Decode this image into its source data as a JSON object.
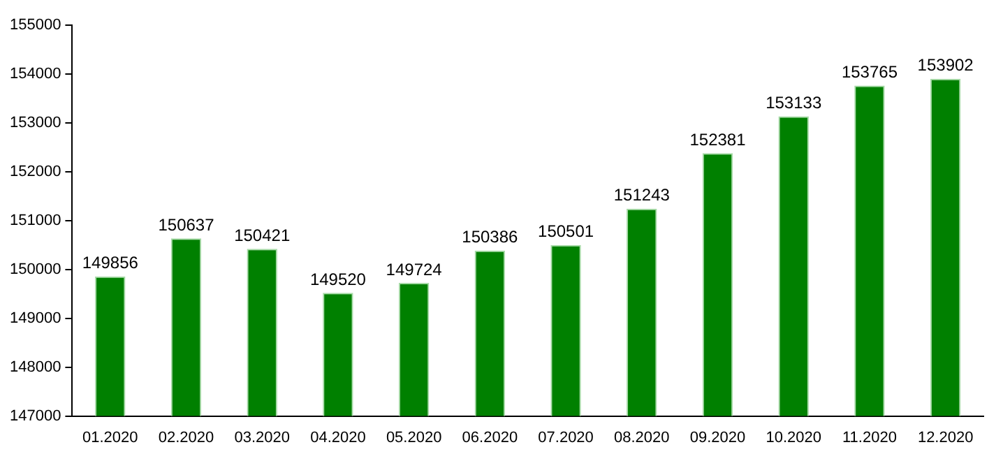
{
  "chart_data": {
    "type": "bar",
    "categories": [
      "01.2020",
      "02.2020",
      "03.2020",
      "04.2020",
      "05.2020",
      "06.2020",
      "07.2020",
      "08.2020",
      "09.2020",
      "10.2020",
      "11.2020",
      "12.2020"
    ],
    "values": [
      149856,
      150637,
      150421,
      149520,
      149724,
      150386,
      150501,
      151243,
      152381,
      153133,
      153765,
      153902
    ],
    "color": "#008000",
    "ylim": [
      147000,
      155000
    ],
    "yticks": [
      147000,
      148000,
      149000,
      150000,
      151000,
      152000,
      153000,
      154000,
      155000
    ],
    "grid": false,
    "legend": false,
    "data_labels": true
  }
}
